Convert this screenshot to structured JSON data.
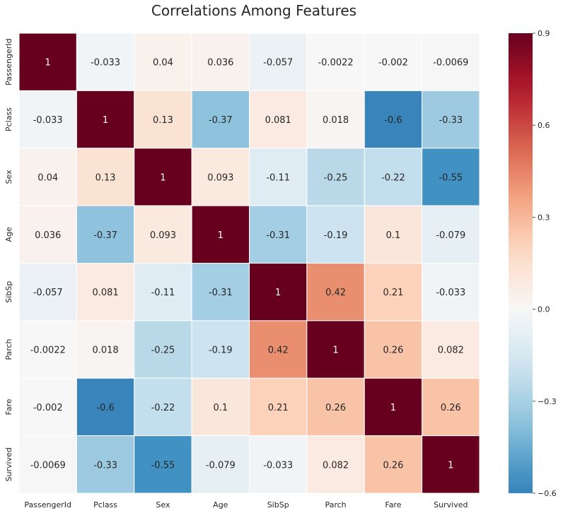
{
  "chart_data": {
    "type": "heatmap",
    "title": "Correlations Among Features",
    "row_labels": [
      "PassengerId",
      "Pclass",
      "Sex",
      "Age",
      "SibSp",
      "Parch",
      "Fare",
      "Survived"
    ],
    "col_labels": [
      "PassengerId",
      "Pclass",
      "Sex",
      "Age",
      "SibSp",
      "Parch",
      "Fare",
      "Survived"
    ],
    "values": [
      [
        1,
        -0.033,
        0.04,
        0.036,
        -0.057,
        -0.0022,
        -0.002,
        -0.0069
      ],
      [
        -0.033,
        1,
        0.13,
        -0.37,
        0.081,
        0.018,
        -0.6,
        -0.33
      ],
      [
        0.04,
        0.13,
        1,
        0.093,
        -0.11,
        -0.25,
        -0.22,
        -0.55
      ],
      [
        0.036,
        -0.37,
        0.093,
        1,
        -0.31,
        -0.19,
        0.1,
        -0.079
      ],
      [
        -0.057,
        0.081,
        -0.11,
        -0.31,
        1,
        0.42,
        0.21,
        -0.033
      ],
      [
        -0.0022,
        0.018,
        -0.25,
        -0.19,
        0.42,
        1,
        0.26,
        0.082
      ],
      [
        -0.002,
        -0.6,
        -0.22,
        0.1,
        0.21,
        0.26,
        1,
        0.26
      ],
      [
        -0.0069,
        -0.33,
        -0.55,
        -0.079,
        -0.033,
        0.082,
        0.26,
        1
      ]
    ],
    "annotations": [
      [
        "1",
        "-0.033",
        "0.04",
        "0.036",
        "-0.057",
        "-0.0022",
        "-0.002",
        "-0.0069"
      ],
      [
        "-0.033",
        "1",
        "0.13",
        "-0.37",
        "0.081",
        "0.018",
        "-0.6",
        "-0.33"
      ],
      [
        "0.04",
        "0.13",
        "1",
        "0.093",
        "-0.11",
        "-0.25",
        "-0.22",
        "-0.55"
      ],
      [
        "0.036",
        "-0.37",
        "0.093",
        "1",
        "-0.31",
        "-0.19",
        "0.1",
        "-0.079"
      ],
      [
        "-0.057",
        "0.081",
        "-0.11",
        "-0.31",
        "1",
        "0.42",
        "0.21",
        "-0.033"
      ],
      [
        "-0.0022",
        "0.018",
        "-0.25",
        "-0.19",
        "0.42",
        "1",
        "0.26",
        "0.082"
      ],
      [
        "-0.002",
        "-0.6",
        "-0.22",
        "0.1",
        "0.21",
        "0.26",
        "1",
        "0.26"
      ],
      [
        "-0.0069",
        "-0.33",
        "-0.55",
        "-0.079",
        "-0.033",
        "0.082",
        "0.26",
        "1"
      ]
    ],
    "colormap": "RdBu_r",
    "vmin": -0.6,
    "vmax": 0.9,
    "colorbar_ticks": [
      -0.6,
      -0.3,
      0.0,
      0.3,
      0.6,
      0.9
    ],
    "colorbar_tick_labels": [
      "−0.6",
      "−0.3",
      "0.0",
      "0.3",
      "0.6",
      "0.9"
    ],
    "legend_placement": "right"
  }
}
